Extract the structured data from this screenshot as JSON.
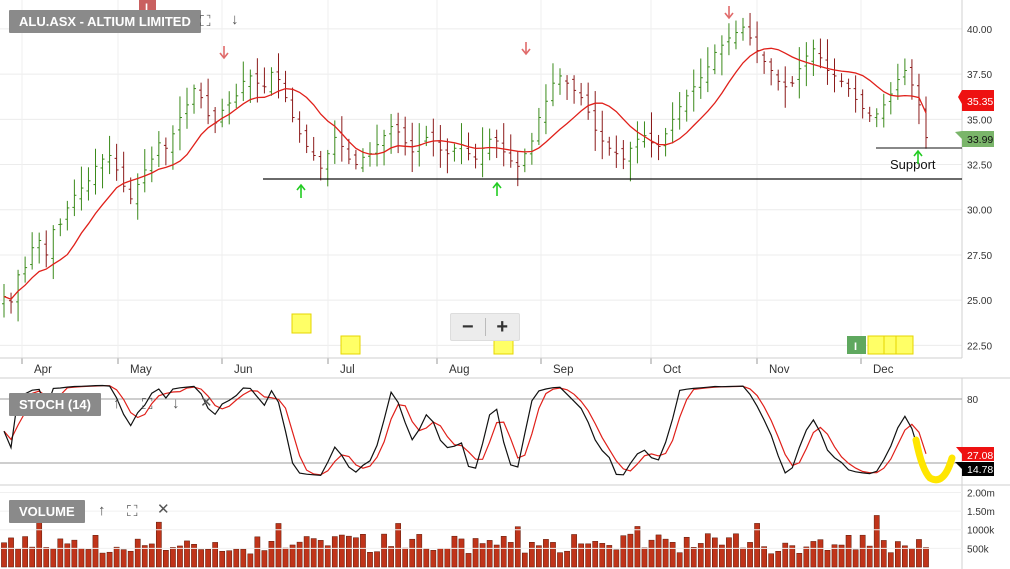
{
  "price_panel": {
    "title": "ALU.ASX - ALTIUM LIMITED",
    "top_badge": "I",
    "support_label": "Support",
    "last_close_label": "33.99",
    "ma_label": "35.35"
  },
  "stoch_panel": {
    "title": "STOCH (14)",
    "k_label": "14.78",
    "d_label": "27.08"
  },
  "volume_panel": {
    "title": "VOLUME"
  },
  "zoom": {
    "minus": "−",
    "plus": "+"
  },
  "icons": {
    "expand": "expand-icon",
    "down_arrow": "down-arrow-icon",
    "up_arrow": "up-arrow-icon",
    "close": "close-icon",
    "event_marker": "event-marker-icon"
  },
  "colors": {
    "up_bar": "#3a8a1a",
    "down_bar": "#8b1a1a",
    "ma_line": "#e0201a",
    "stoch_k": "#111111",
    "stoch_d": "#e0201a",
    "volume_bar": "#c0341a",
    "ma_badge": "#ee1111",
    "close_badge": "#7ab56a",
    "k_badge": "#000000",
    "signal_up": "#22cc22",
    "signal_down": "#e06a6a",
    "highlight": "#ffe600"
  },
  "chart_data": [
    {
      "type": "ohlc",
      "title": "ALU.ASX - ALTIUM LIMITED",
      "x_tick_labels": [
        "Apr",
        "May",
        "Jun",
        "Jul",
        "Aug",
        "Sep",
        "Oct",
        "Nov",
        "Dec"
      ],
      "y_tick_labels": [
        "40.00",
        "37.50",
        "35.00",
        "32.50",
        "30.00",
        "27.50",
        "25.00",
        "22.50"
      ],
      "ylim": [
        21.8,
        41.6
      ],
      "support_level": 31.7,
      "annotations": [
        "Support"
      ],
      "close_series": [
        25.2,
        24.9,
        26.4,
        26.8,
        27.9,
        28.3,
        27.5,
        28.9,
        29.2,
        30.1,
        30.8,
        31.2,
        31.6,
        32.4,
        32.8,
        33.0,
        32.2,
        31.3,
        30.6,
        31.4,
        32.2,
        32.8,
        33.7,
        33.4,
        34.2,
        35.1,
        35.8,
        36.7,
        36.2,
        35.2,
        34.8,
        35.5,
        35.9,
        36.3,
        37.1,
        37.4,
        37.0,
        36.8,
        37.6,
        37.2,
        36.2,
        35.1,
        34.2,
        33.5,
        33.0,
        32.3,
        33.1,
        34.0,
        33.5,
        32.8,
        32.5,
        32.9,
        33.1,
        33.6,
        34.1,
        34.6,
        34.3,
        33.7,
        33.2,
        33.6,
        34.0,
        33.8,
        33.3,
        33.1,
        33.4,
        33.6,
        33.1,
        32.8,
        33.4,
        33.9,
        33.8,
        33.2,
        32.7,
        32.4,
        33.1,
        33.8,
        35.1,
        36.0,
        37.0,
        37.4,
        37.0,
        36.6,
        36.2,
        35.4,
        34.4,
        33.8,
        33.4,
        33.1,
        32.8,
        33.4,
        33.9,
        34.1,
        33.7,
        33.5,
        34.2,
        35.0,
        35.7,
        36.3,
        36.8,
        37.3,
        37.9,
        38.7,
        39.1,
        39.5,
        39.8,
        40.1,
        39.5,
        38.8,
        38.2,
        37.7,
        37.1,
        36.8,
        37.0,
        37.8,
        38.5,
        38.9,
        38.4,
        37.7,
        37.4,
        37.1,
        36.7,
        36.1,
        35.6,
        35.2,
        35.3,
        35.8,
        36.4,
        37.2,
        37.7,
        36.9,
        35.8,
        33.99
      ],
      "ma_last": 35.35
    },
    {
      "type": "line",
      "title": "STOCH (14)",
      "y_tick_labels": [
        "80"
      ],
      "ylim": [
        0,
        100
      ],
      "series": [
        {
          "name": "%K",
          "last": 14.78
        },
        {
          "name": "%D",
          "last": 27.08
        }
      ]
    },
    {
      "type": "bar",
      "title": "VOLUME",
      "y_tick_labels": [
        "2.00m",
        "1.50m",
        "1000k",
        "500k"
      ],
      "ylim": [
        0,
        2200000
      ]
    }
  ]
}
